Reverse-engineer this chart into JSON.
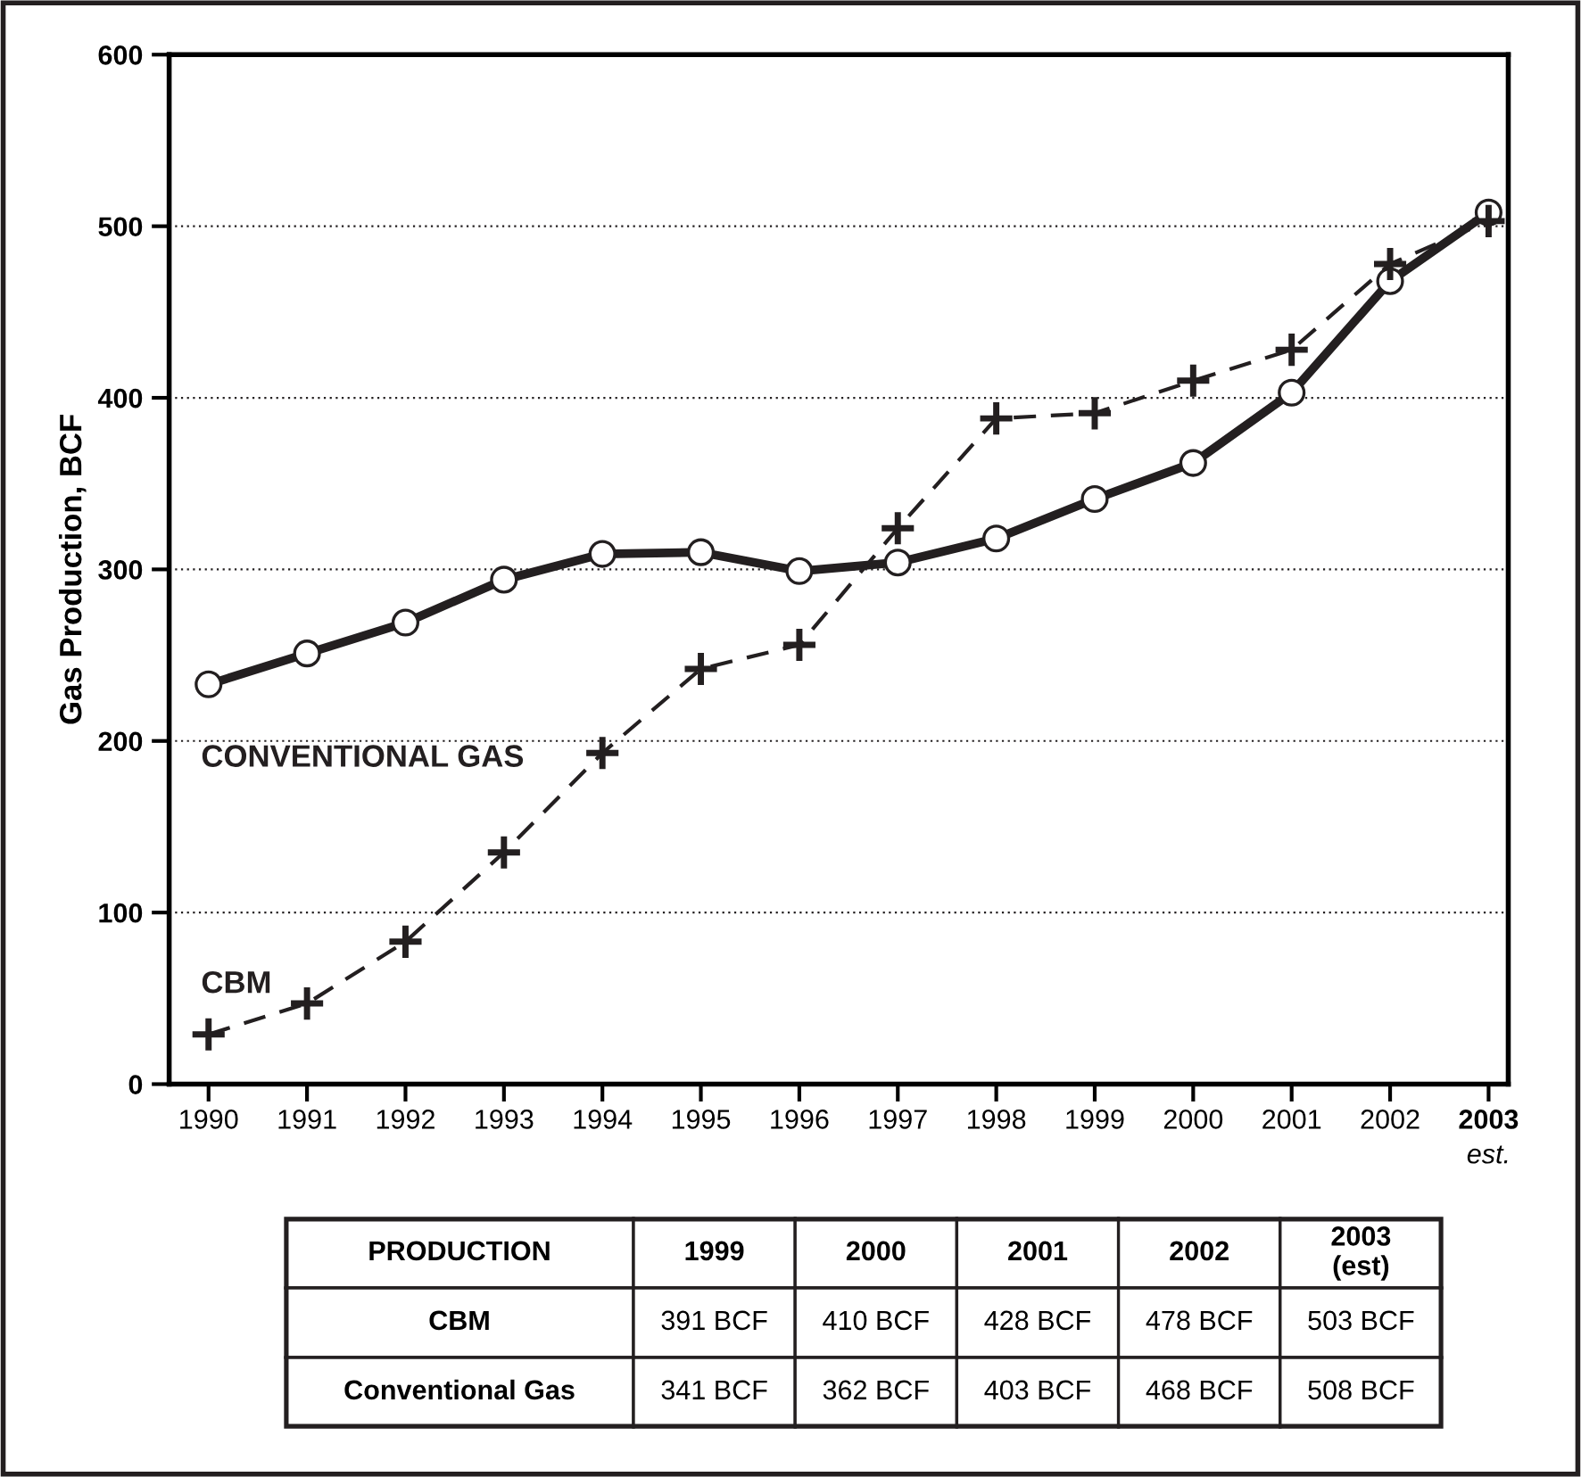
{
  "chart_data": {
    "type": "line",
    "ylabel": "Gas Production, BCF",
    "categories": [
      "1990",
      "1991",
      "1992",
      "1993",
      "1994",
      "1995",
      "1996",
      "1997",
      "1998",
      "1999",
      "2000",
      "2001",
      "2002",
      "2003\nest."
    ],
    "series": [
      {
        "name": "CONVENTIONAL GAS",
        "color": "#231f20",
        "marker": "circle",
        "line_style": "solid",
        "values": [
          233,
          251,
          269,
          294,
          309,
          310,
          299,
          304,
          318,
          341,
          362,
          403,
          468,
          508
        ]
      },
      {
        "name": "CBM",
        "color": "#231f20",
        "marker": "cross",
        "line_style": "dashed",
        "values": [
          29,
          47,
          83,
          135,
          193,
          242,
          256,
          324,
          388,
          391,
          410,
          428,
          478,
          503
        ]
      }
    ],
    "ylim": [
      0,
      600
    ],
    "yticks": [
      0,
      100,
      200,
      300,
      400,
      500,
      600
    ],
    "grid": "y",
    "annotations": [
      "PRODUCTION",
      "1999",
      "2000",
      "2001",
      "2002",
      "2003\n(est)",
      "CBM",
      "391 BCF",
      "410 BCF",
      "428 BCF",
      "478 BCF",
      "503 BCF",
      "Conventional Gas",
      "341 BCF",
      "362 BCF",
      "403 BCF",
      "468 BCF",
      "508 BCF"
    ]
  }
}
